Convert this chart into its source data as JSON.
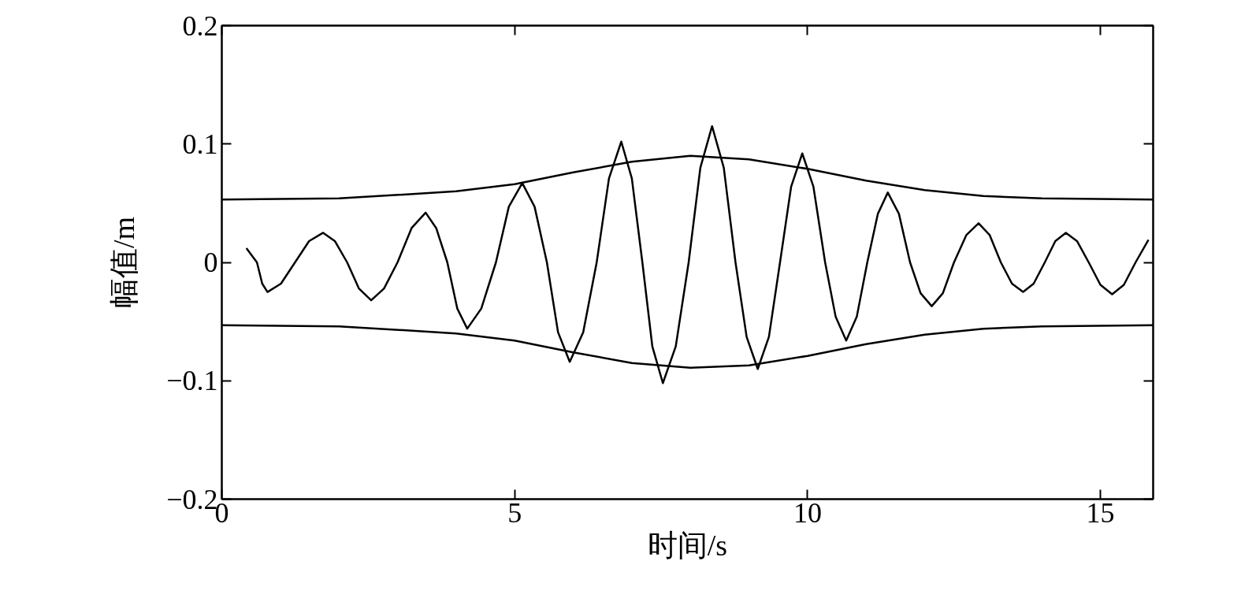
{
  "chart_data": {
    "type": "line",
    "xlabel": "时间/s",
    "ylabel": "幅值/m",
    "xlim": [
      0,
      15.9
    ],
    "ylim": [
      -0.2,
      0.2
    ],
    "xticks": [
      0,
      5,
      10,
      15
    ],
    "yticks": [
      {
        "value": -0.2,
        "label": "−0.2"
      },
      {
        "value": -0.1,
        "label": "−0.1"
      },
      0,
      0.1,
      0.2
    ],
    "grid": false,
    "marker": "none",
    "line_style": "solid",
    "series": [
      {
        "color": "#000000",
        "x": [
          0.42,
          0.6,
          0.69,
          0.78,
          1.01,
          1.25,
          1.49,
          1.73,
          1.93,
          2.14,
          2.34,
          2.55,
          2.77,
          3.0,
          3.24,
          3.48,
          3.66,
          3.85,
          4.02,
          4.19,
          4.43,
          4.68,
          4.9,
          5.13,
          5.34,
          5.55,
          5.74,
          5.94,
          6.17,
          6.4,
          6.61,
          6.82,
          7.0,
          7.18,
          7.35,
          7.53,
          7.75,
          7.97,
          8.17,
          8.37,
          8.57,
          8.77,
          8.96,
          9.15,
          9.34,
          9.53,
          9.72,
          9.91,
          10.1,
          10.3,
          10.48,
          10.66,
          10.84,
          11.02,
          11.2,
          11.37,
          11.56,
          11.75,
          11.93,
          12.12,
          12.31,
          12.5,
          12.71,
          12.92,
          13.11,
          13.3,
          13.49,
          13.68,
          13.86,
          14.05,
          14.23,
          14.41,
          14.6,
          14.8,
          15.0,
          15.2,
          15.4,
          15.6,
          15.82
        ],
        "values": [
          0.012,
          0,
          -0.018,
          -0.025,
          -0.018,
          0,
          0.018,
          0.025,
          0.018,
          0,
          -0.022,
          -0.032,
          -0.022,
          0,
          0.029,
          0.042,
          0.029,
          0,
          -0.039,
          -0.056,
          -0.039,
          0,
          0.047,
          0.067,
          0.047,
          0,
          -0.059,
          -0.084,
          -0.059,
          0,
          0.071,
          0.102,
          0.071,
          0,
          -0.071,
          -0.102,
          -0.071,
          0,
          0.08,
          0.115,
          0.08,
          0,
          -0.063,
          -0.09,
          -0.063,
          0,
          0.064,
          0.092,
          0.064,
          0,
          -0.046,
          -0.066,
          -0.046,
          0,
          0.041,
          0.059,
          0.041,
          0,
          -0.026,
          -0.037,
          -0.026,
          0,
          0.023,
          0.033,
          0.023,
          0,
          -0.018,
          -0.025,
          -0.018,
          0,
          0.018,
          0.025,
          0.018,
          0,
          -0.019,
          -0.027,
          -0.019,
          0,
          0.019
        ]
      },
      {
        "color": "#000000",
        "x": [
          0,
          2,
          4,
          5,
          6,
          7,
          8,
          9,
          10,
          11,
          12,
          13,
          14,
          15.9
        ],
        "values": [
          0.053,
          0.054,
          0.06,
          0.066,
          0.076,
          0.085,
          0.09,
          0.087,
          0.079,
          0.069,
          0.061,
          0.056,
          0.054,
          0.053
        ]
      },
      {
        "color": "#000000",
        "x": [
          0,
          2,
          4,
          5,
          6,
          7,
          8,
          9,
          10,
          11,
          12,
          13,
          14,
          15.9
        ],
        "values": [
          -0.053,
          -0.054,
          -0.06,
          -0.066,
          -0.076,
          -0.085,
          -0.089,
          -0.087,
          -0.079,
          -0.069,
          -0.061,
          -0.056,
          -0.054,
          -0.053
        ]
      }
    ]
  }
}
